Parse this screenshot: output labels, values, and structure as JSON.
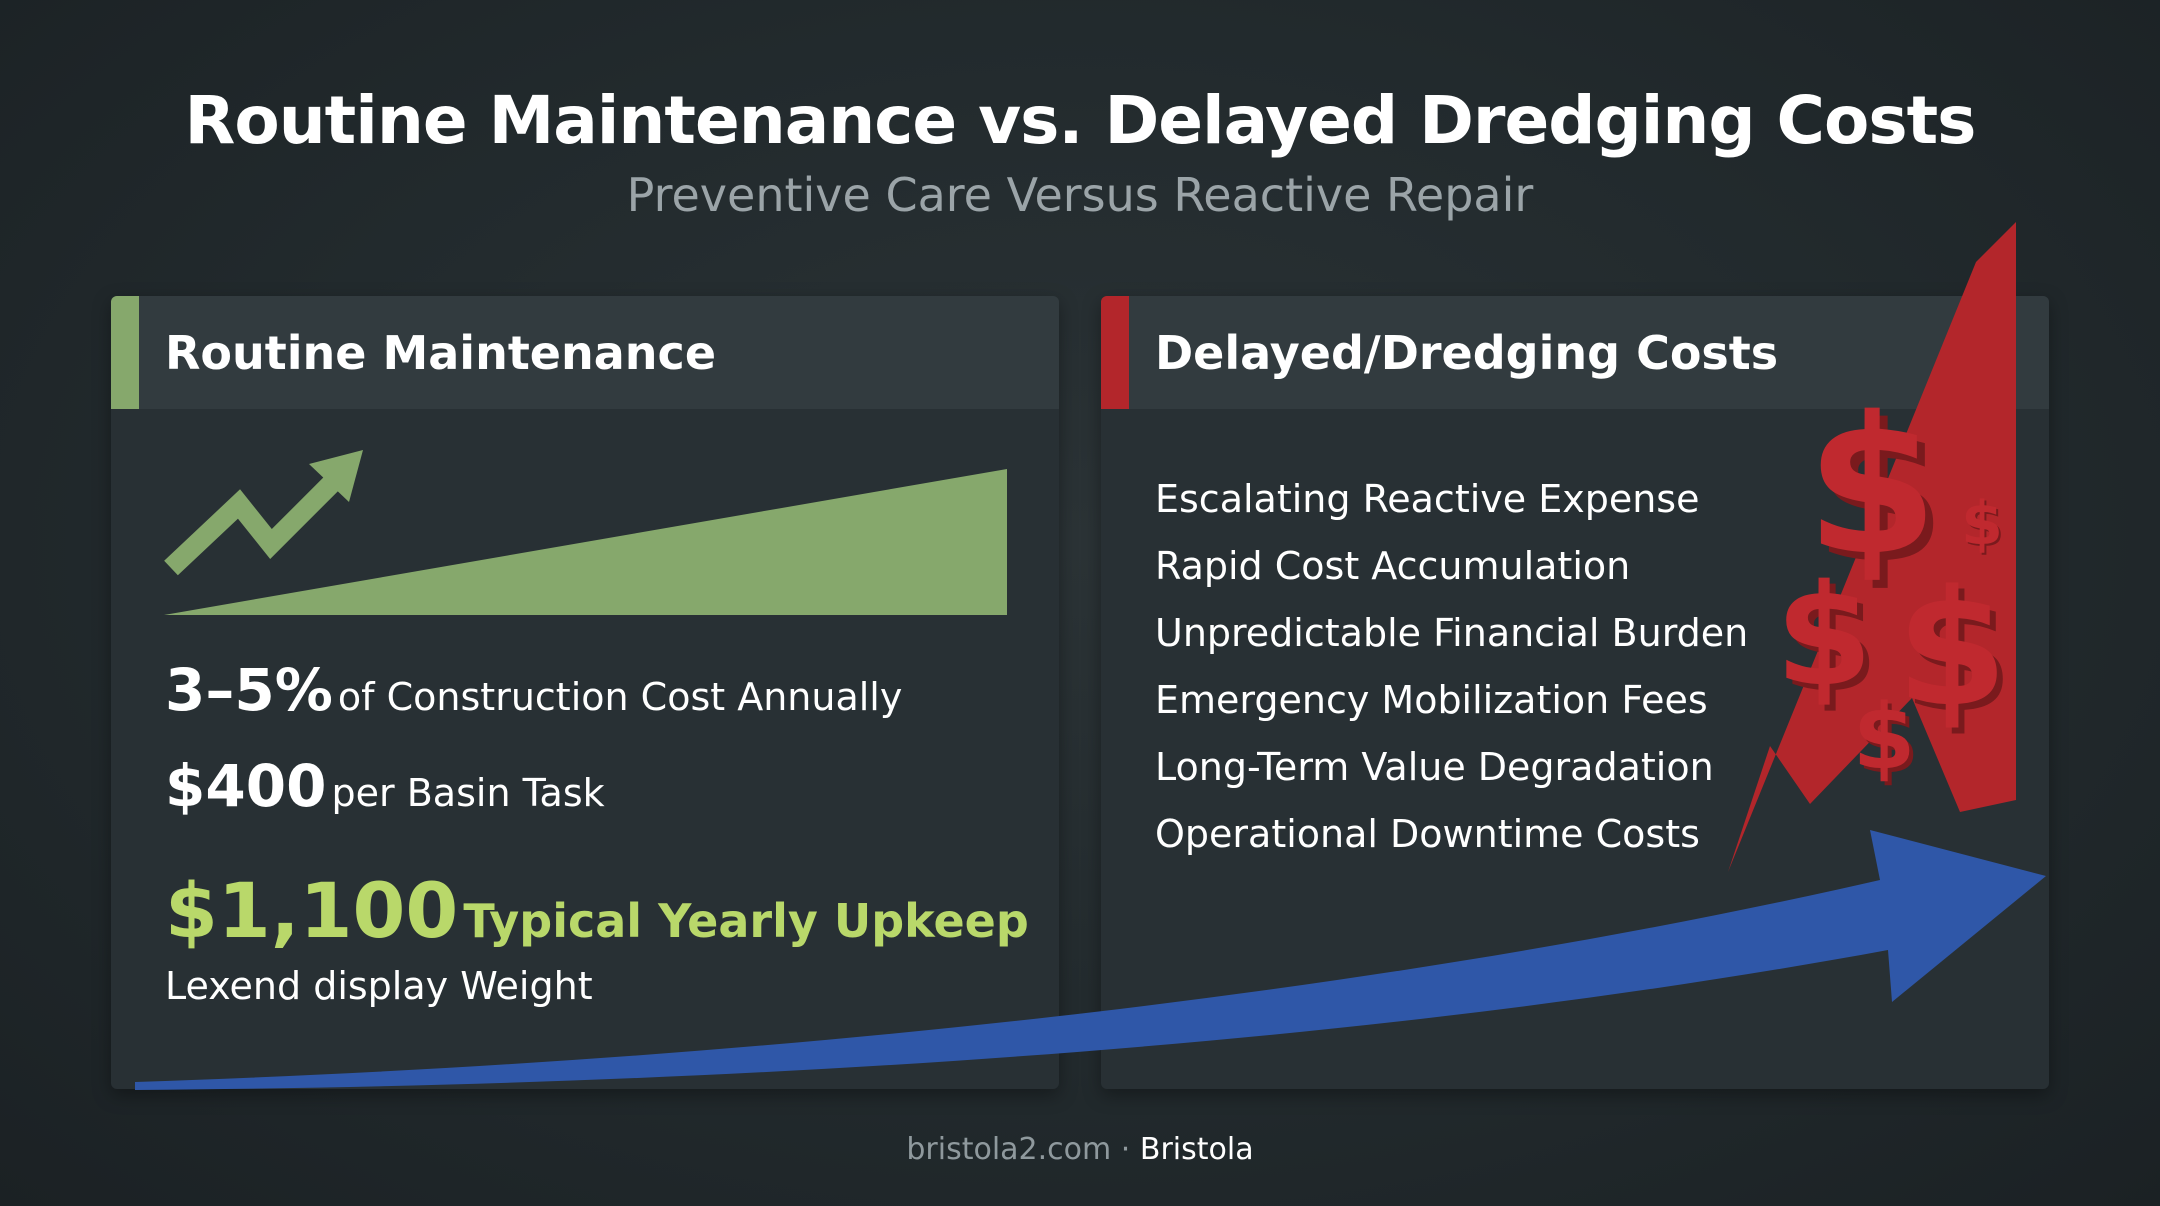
{
  "header": {
    "title": "Routine Maintenance vs. Delayed Dredging Costs",
    "subtitle": "Preventive Care Versus Reactive Repair"
  },
  "left_panel": {
    "title": "Routine Maintenance",
    "stat1_value": "3–5%",
    "stat1_text": "of Construction Cost Annually",
    "stat2_value": "$400",
    "stat2_text": "per Basin Task",
    "stat3_value": "$1,100",
    "stat3_text": "Typical Yearly Upkeep",
    "note": "Lexend display Weight"
  },
  "right_panel": {
    "title": "Delayed/Dredging Costs",
    "items": [
      "Escalating Reactive Expense",
      "Rapid Cost Accumulation",
      "Unpredictable Financial Burden",
      "Emergency Mobilization Fees",
      "Long-Term Value Degradation",
      "Operational Downtime Costs"
    ]
  },
  "footer": {
    "site": "bristola2.com",
    "separator": "·",
    "brand": "Bristola"
  },
  "colors": {
    "background": "#222a2d",
    "panel": "#283034",
    "panel_header": "#323b3f",
    "green_accent": "#86a86c",
    "highlight_green": "#b9d86a",
    "red_accent": "#b3262b",
    "blue_arrow": "#2f57a8"
  },
  "icons": [
    "trend-arrow-icon",
    "dollar-sign-icon",
    "red-up-arrow-icon",
    "blue-growth-arrow-icon"
  ]
}
